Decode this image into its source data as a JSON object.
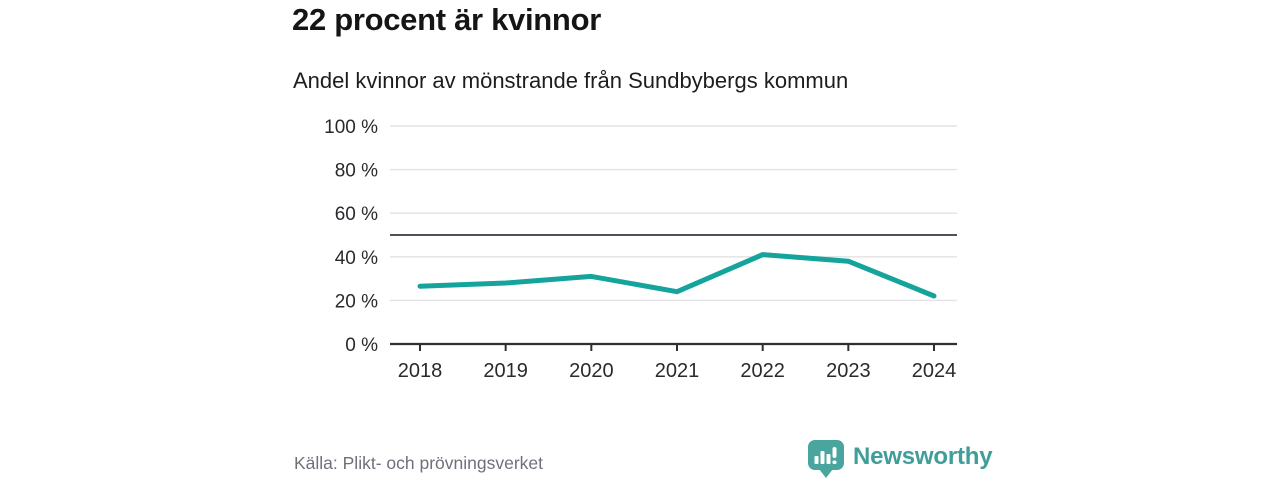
{
  "header": {
    "title": "22 procent är kvinnor",
    "subtitle": "Andel kvinnor av mönstrande från Sundbybergs kommun"
  },
  "footer": {
    "source": "Källa: Plikt- och prövningsverket",
    "brand_name": "Newsworthy"
  },
  "colors": {
    "line": "#15a49c",
    "reference_line": "#50505a",
    "grid": "#e2e2e5",
    "axis": "#2f2f33",
    "tick_text": "#2a2a2e",
    "brand_teal": "#3f9e99",
    "logo_bg": "#4aa59f",
    "muted_text": "#70707b"
  },
  "chart_data": {
    "type": "line",
    "x": [
      "2018",
      "2019",
      "2020",
      "2021",
      "2022",
      "2023",
      "2024"
    ],
    "series": [
      {
        "name": "Andel kvinnor av mönstrande",
        "values": [
          26.5,
          28,
          31,
          24,
          41,
          38,
          22
        ],
        "color": "#15a49c"
      }
    ],
    "reference_line": {
      "value": 50
    },
    "title": "22 procent är kvinnor",
    "subtitle": "Andel kvinnor av mönstrande från Sundbybergs kommun",
    "xlabel": "",
    "ylabel": "",
    "ylim": [
      0,
      100
    ],
    "yticks": [
      0,
      20,
      40,
      60,
      80,
      100
    ],
    "ytick_format": "{v} %",
    "grid": true,
    "legend": false
  }
}
